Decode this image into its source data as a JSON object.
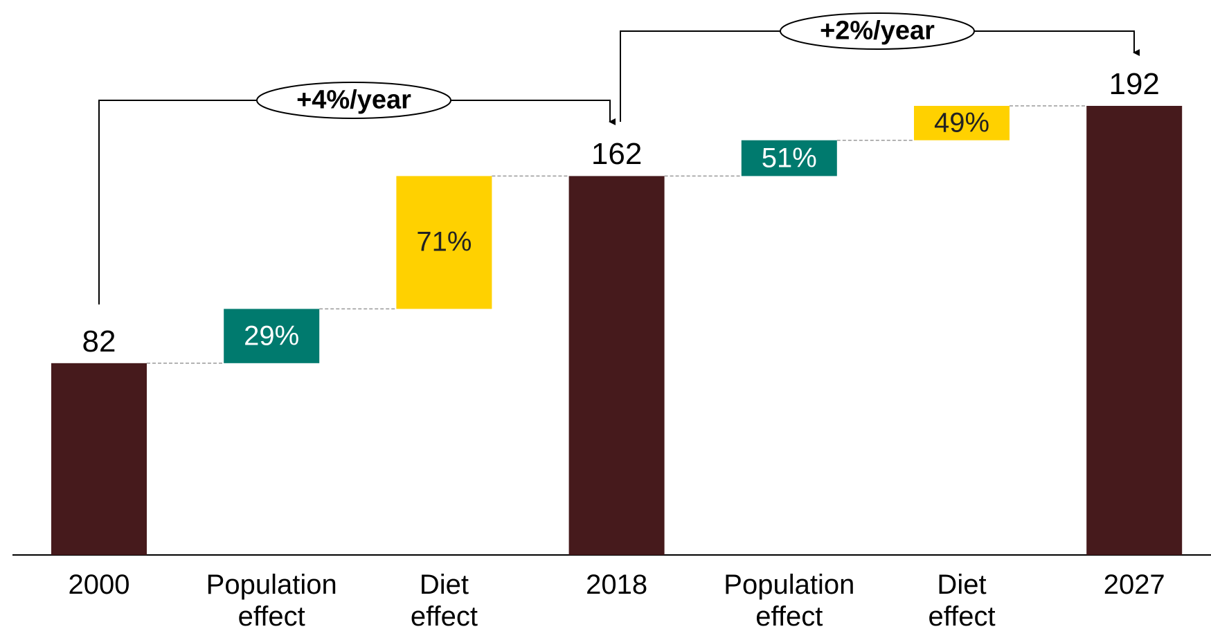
{
  "chart_data": {
    "type": "waterfall",
    "categories": [
      "2000",
      "Population effect",
      "Diet effect",
      "2018",
      "Population effect",
      "Diet effect",
      "2027"
    ],
    "kinds": [
      "total",
      "increase",
      "increase",
      "total",
      "increase",
      "increase",
      "total"
    ],
    "values": [
      82,
      23.2,
      56.8,
      162,
      15.3,
      14.7,
      192
    ],
    "shares": [
      null,
      29,
      71,
      null,
      51,
      49,
      null
    ],
    "share_labels": [
      null,
      "29%",
      "71%",
      null,
      "51%",
      "49%",
      null
    ],
    "colors": [
      "#461a1c",
      "#007a6e",
      "#ffd100",
      "#461a1c",
      "#007a6e",
      "#ffd100",
      "#461a1c"
    ],
    "annotations": [
      "+4%/year",
      "+2%/year"
    ]
  }
}
